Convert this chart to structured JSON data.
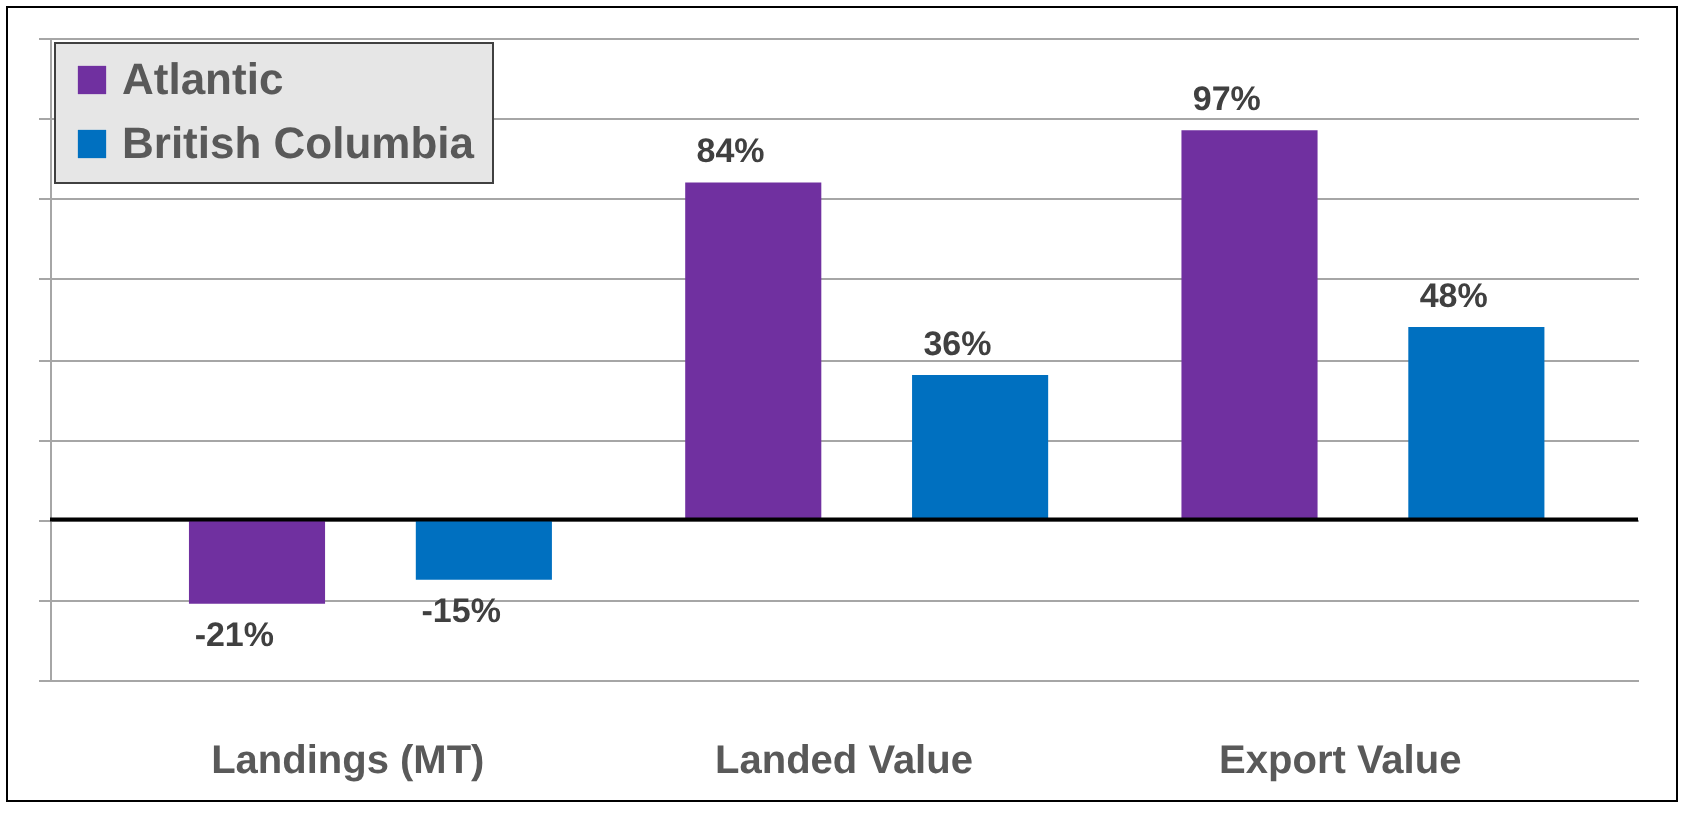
{
  "chart_data": {
    "type": "bar",
    "categories": [
      "Landings (MT)",
      "Landed Value",
      "Export Value"
    ],
    "series": [
      {
        "name": "Atlantic",
        "color": "#7030a0",
        "values": [
          -21,
          84,
          97
        ],
        "value_labels": [
          "-21%",
          "84%",
          "97%"
        ]
      },
      {
        "name": "British Columbia",
        "color": "#0070c0",
        "values": [
          -15,
          36,
          48
        ],
        "value_labels": [
          "-15%",
          "36%",
          "48%"
        ]
      }
    ],
    "ylim": [
      -40,
      120
    ],
    "grid": "y",
    "legend": "top left",
    "tick_labels": "x"
  }
}
